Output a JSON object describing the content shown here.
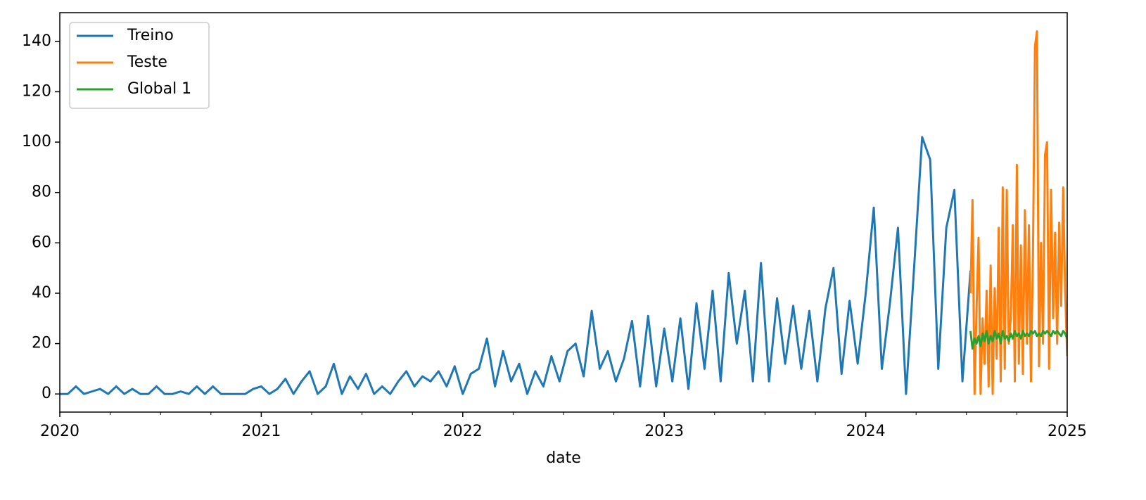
{
  "chart_data": {
    "type": "line",
    "xlabel": "date",
    "xlim": [
      2020,
      2025
    ],
    "xticks": [
      2020,
      2021,
      2022,
      2023,
      2024,
      2025
    ],
    "xminorticks": [
      2020.25,
      2020.5,
      2020.75,
      2021.25,
      2021.5,
      2021.75,
      2022.25,
      2022.5,
      2022.75,
      2023.25,
      2023.5,
      2023.75,
      2024.25,
      2024.5,
      2024.75
    ],
    "ylim": [
      -7.2,
      151.4
    ],
    "yticks": [
      0,
      20,
      40,
      60,
      80,
      100,
      120,
      140
    ],
    "legend": "upper left",
    "series": [
      {
        "name": "Treino",
        "color": "#1f77b4",
        "x": [
          2020.0,
          2020.04,
          2020.08,
          2020.12,
          2020.16,
          2020.2,
          2020.24,
          2020.28,
          2020.32,
          2020.36,
          2020.4,
          2020.44,
          2020.48,
          2020.52,
          2020.56,
          2020.6,
          2020.64,
          2020.68,
          2020.72,
          2020.76,
          2020.8,
          2020.84,
          2020.88,
          2020.92,
          2020.96,
          2021.0,
          2021.04,
          2021.08,
          2021.12,
          2021.16,
          2021.2,
          2021.24,
          2021.28,
          2021.32,
          2021.36,
          2021.4,
          2021.44,
          2021.48,
          2021.52,
          2021.56,
          2021.6,
          2021.64,
          2021.68,
          2021.72,
          2021.76,
          2021.8,
          2021.84,
          2021.88,
          2021.92,
          2021.96,
          2022.0,
          2022.04,
          2022.08,
          2022.12,
          2022.16,
          2022.2,
          2022.24,
          2022.28,
          2022.32,
          2022.36,
          2022.4,
          2022.44,
          2022.48,
          2022.52,
          2022.56,
          2022.6,
          2022.64,
          2022.68,
          2022.72,
          2022.76,
          2022.8,
          2022.84,
          2022.88,
          2022.92,
          2022.96,
          2023.0,
          2023.04,
          2023.08,
          2023.12,
          2023.16,
          2023.2,
          2023.24,
          2023.28,
          2023.32,
          2023.36,
          2023.4,
          2023.44,
          2023.48,
          2023.52,
          2023.56,
          2023.6,
          2023.64,
          2023.68,
          2023.72,
          2023.76,
          2023.8,
          2023.84,
          2023.88,
          2023.92,
          2023.96,
          2024.0,
          2024.04,
          2024.08,
          2024.12,
          2024.16,
          2024.2,
          2024.24,
          2024.28,
          2024.32,
          2024.36,
          2024.4,
          2024.44,
          2024.48,
          2024.52
        ],
        "values": [
          0,
          0,
          3,
          0,
          1,
          2,
          0,
          3,
          0,
          2,
          0,
          0,
          3,
          0,
          0,
          1,
          0,
          3,
          0,
          3,
          0,
          0,
          0,
          0,
          2,
          3,
          0,
          2,
          6,
          0,
          5,
          9,
          0,
          3,
          12,
          0,
          7,
          2,
          8,
          0,
          3,
          0,
          5,
          9,
          3,
          7,
          5,
          9,
          3,
          11,
          0,
          8,
          10,
          22,
          3,
          17,
          5,
          12,
          0,
          9,
          3,
          15,
          5,
          17,
          20,
          7,
          33,
          10,
          17,
          5,
          14,
          29,
          3,
          31,
          3,
          26,
          5,
          30,
          2,
          36,
          10,
          41,
          5,
          48,
          20,
          41,
          5,
          52,
          5,
          38,
          12,
          35,
          10,
          33,
          5,
          34,
          50,
          8,
          37,
          12,
          40,
          74,
          10,
          36,
          66,
          0,
          50,
          102,
          93,
          10,
          66,
          81,
          5,
          49
        ]
      },
      {
        "name": "Teste",
        "color": "#ff7f0e",
        "x": [
          2024.52,
          2024.53,
          2024.54,
          2024.55,
          2024.56,
          2024.57,
          2024.58,
          2024.59,
          2024.6,
          2024.61,
          2024.62,
          2024.63,
          2024.64,
          2024.65,
          2024.66,
          2024.67,
          2024.68,
          2024.69,
          2024.7,
          2024.71,
          2024.72,
          2024.73,
          2024.74,
          2024.75,
          2024.76,
          2024.77,
          2024.78,
          2024.79,
          2024.8,
          2024.81,
          2024.82,
          2024.83,
          2024.84,
          2024.85,
          2024.86,
          2024.87,
          2024.88,
          2024.89,
          2024.9,
          2024.91,
          2024.92,
          2024.93,
          2024.94,
          2024.95,
          2024.96,
          2024.97,
          2024.98,
          2024.99,
          2025.0
        ],
        "values": [
          40,
          77,
          0,
          34,
          62,
          0,
          30,
          12,
          41,
          3,
          51,
          0,
          42,
          14,
          66,
          5,
          82,
          10,
          81,
          20,
          30,
          67,
          5,
          91,
          12,
          59,
          8,
          73,
          20,
          67,
          5,
          55,
          138,
          144,
          11,
          60,
          20,
          95,
          100,
          10,
          81,
          30,
          64,
          20,
          68,
          35,
          82,
          40,
          15
        ]
      },
      {
        "name": "Global 1",
        "color": "#2ca02c",
        "x": [
          2024.52,
          2024.53,
          2024.54,
          2024.55,
          2024.56,
          2024.57,
          2024.58,
          2024.59,
          2024.6,
          2024.61,
          2024.62,
          2024.63,
          2024.64,
          2024.65,
          2024.66,
          2024.67,
          2024.68,
          2024.69,
          2024.7,
          2024.71,
          2024.72,
          2024.73,
          2024.74,
          2024.75,
          2024.76,
          2024.77,
          2024.78,
          2024.79,
          2024.8,
          2024.81,
          2024.82,
          2024.83,
          2024.84,
          2024.85,
          2024.86,
          2024.87,
          2024.88,
          2024.89,
          2024.9,
          2024.91,
          2024.92,
          2024.93,
          2024.94,
          2024.95,
          2024.96,
          2024.97,
          2024.98,
          2024.99,
          2025.0
        ],
        "values": [
          25,
          18,
          22,
          20,
          23,
          19,
          24,
          21,
          25,
          20,
          23,
          21,
          25,
          22,
          24,
          20,
          25,
          22,
          23,
          21,
          24,
          22,
          25,
          23,
          24,
          22,
          25,
          23,
          24,
          23,
          25,
          24,
          25,
          23,
          24,
          23,
          25,
          24,
          25,
          24,
          23,
          25,
          24,
          25,
          24,
          23,
          25,
          24,
          22
        ]
      }
    ]
  }
}
